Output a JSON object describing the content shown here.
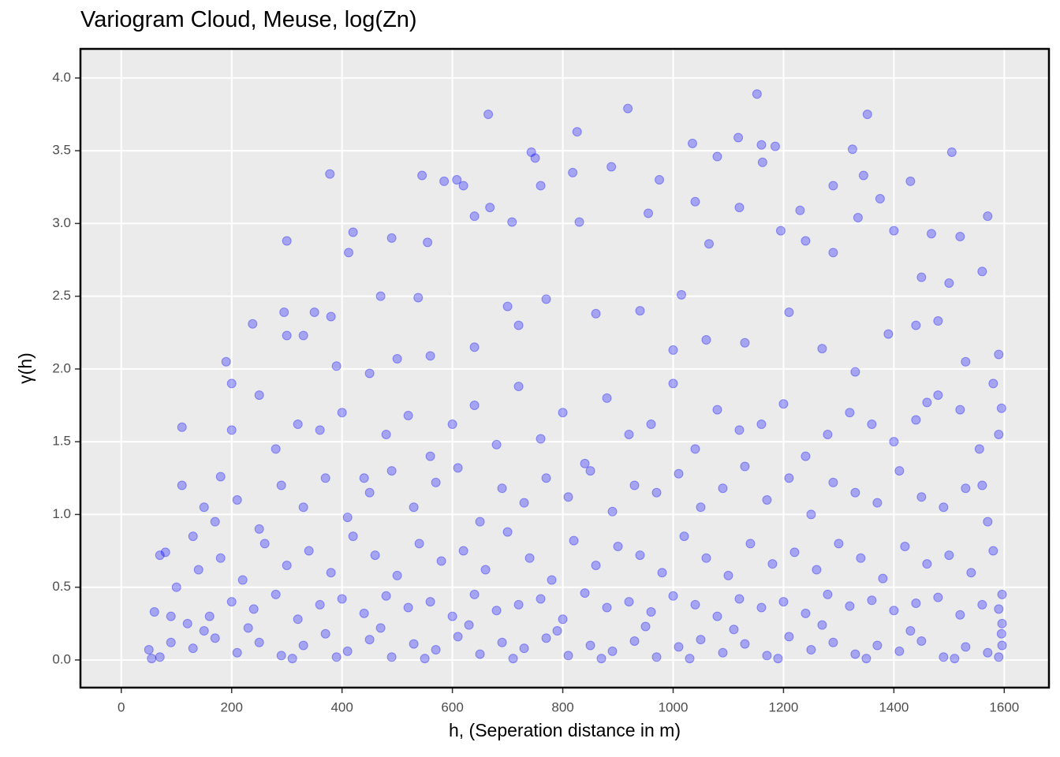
{
  "chart_data": {
    "type": "scatter",
    "title": "Variogram Cloud, Meuse, log(Zn)",
    "x_label": "h, (Seperation distance in m)",
    "y_label": "γ(h)",
    "xlim": [
      -74,
      1681
    ],
    "ylim": [
      -0.19,
      4.2
    ],
    "xticks": [
      0,
      200,
      400,
      600,
      800,
      1000,
      1200,
      1400,
      1600
    ],
    "yticks": [
      {
        "value": 0,
        "label": "0.0"
      },
      0.5,
      {
        "value": 1,
        "label": "1.0"
      },
      1.5,
      {
        "value": 2,
        "label": "2.0"
      },
      2.5,
      {
        "value": 3,
        "label": "3.0"
      },
      3.5,
      {
        "value": 4,
        "label": "4.0"
      }
    ],
    "grid": true,
    "series": [
      {
        "color": "#0000ff",
        "x": [
          665,
          918,
          1152,
          1352,
          826,
          1118,
          1035,
          1160,
          1185,
          1325,
          743,
          1505,
          750,
          1080,
          1162,
          378,
          545,
          818,
          888,
          1345,
          608,
          585,
          975,
          1290,
          760,
          620,
          1430,
          1040,
          1120,
          668,
          1375,
          1570,
          1335,
          1230,
          640,
          955,
          830,
          708,
          1195,
          420,
          1400,
          490,
          300,
          1468,
          1520,
          1065,
          555,
          1240,
          412,
          1290,
          1500,
          1560,
          1450,
          470,
          538,
          770,
          1015,
          380,
          350,
          295,
          238,
          190,
          200,
          200,
          110,
          110,
          150,
          180,
          70,
          80,
          60,
          50,
          90,
          1590,
          1595,
          1580,
          1555,
          1590,
          300,
          330,
          390,
          450,
          500,
          560,
          640,
          700,
          720,
          860,
          940,
          1000,
          1060,
          1130,
          1210,
          1270,
          1330,
          1390,
          1440,
          1480,
          1530,
          1460,
          250,
          280,
          320,
          360,
          400,
          440,
          480,
          520,
          560,
          600,
          640,
          680,
          720,
          760,
          800,
          840,
          880,
          920,
          960,
          1000,
          1040,
          1080,
          1120,
          1160,
          1200,
          1240,
          1280,
          1320,
          1360,
          1400,
          1440,
          1480,
          1520,
          1560,
          130,
          170,
          210,
          250,
          290,
          330,
          370,
          410,
          450,
          490,
          530,
          570,
          610,
          650,
          690,
          730,
          770,
          810,
          850,
          890,
          930,
          970,
          1010,
          1050,
          1090,
          1130,
          1170,
          1210,
          1250,
          1290,
          1330,
          1370,
          1410,
          1450,
          1490,
          1530,
          1570,
          100,
          140,
          180,
          220,
          260,
          300,
          340,
          380,
          420,
          460,
          500,
          540,
          580,
          620,
          660,
          700,
          740,
          780,
          820,
          860,
          900,
          940,
          980,
          1020,
          1060,
          1100,
          1140,
          1180,
          1220,
          1260,
          1300,
          1340,
          1380,
          1420,
          1460,
          1500,
          1540,
          1580,
          120,
          160,
          200,
          240,
          280,
          320,
          360,
          400,
          440,
          480,
          520,
          560,
          600,
          640,
          680,
          720,
          760,
          800,
          840,
          880,
          920,
          960,
          1000,
          1040,
          1080,
          1120,
          1160,
          1200,
          1240,
          1280,
          1320,
          1360,
          1400,
          1440,
          1480,
          1520,
          1560,
          1590,
          90,
          130,
          170,
          210,
          250,
          290,
          330,
          370,
          410,
          450,
          490,
          530,
          570,
          610,
          650,
          690,
          730,
          770,
          810,
          850,
          890,
          930,
          970,
          1010,
          1050,
          1090,
          1130,
          1170,
          1210,
          1250,
          1290,
          1330,
          1370,
          1410,
          1450,
          1490,
          1530,
          1570,
          1595,
          70,
          150,
          230,
          310,
          390,
          470,
          550,
          630,
          710,
          790,
          870,
          950,
          1030,
          1110,
          1190,
          1270,
          1350,
          1430,
          1510,
          1590,
          55,
          1596,
          1596,
          1596
        ],
        "values": [
          3.75,
          3.79,
          3.89,
          3.75,
          3.63,
          3.59,
          3.55,
          3.54,
          3.53,
          3.51,
          3.49,
          3.49,
          3.45,
          3.46,
          3.42,
          3.34,
          3.33,
          3.35,
          3.39,
          3.33,
          3.3,
          3.29,
          3.3,
          3.26,
          3.26,
          3.26,
          3.29,
          3.15,
          3.11,
          3.11,
          3.17,
          3.05,
          3.04,
          3.09,
          3.05,
          3.07,
          3.01,
          3.01,
          2.95,
          2.94,
          2.95,
          2.9,
          2.88,
          2.93,
          2.91,
          2.86,
          2.87,
          2.88,
          2.8,
          2.8,
          2.59,
          2.67,
          2.63,
          2.5,
          2.49,
          2.48,
          2.51,
          2.36,
          2.39,
          2.39,
          2.31,
          2.05,
          1.9,
          1.58,
          1.6,
          1.2,
          1.05,
          1.26,
          0.72,
          0.74,
          0.33,
          0.07,
          0.3,
          2.1,
          1.73,
          1.9,
          1.45,
          1.55,
          2.23,
          2.23,
          2.02,
          1.97,
          2.07,
          2.09,
          2.15,
          2.43,
          2.3,
          2.38,
          2.4,
          2.13,
          2.2,
          2.18,
          2.39,
          2.14,
          1.98,
          2.24,
          2.3,
          2.33,
          2.05,
          1.77,
          1.82,
          1.45,
          1.62,
          1.58,
          1.7,
          1.25,
          1.55,
          1.68,
          1.4,
          1.62,
          1.75,
          1.48,
          1.88,
          1.52,
          1.7,
          1.35,
          1.8,
          1.55,
          1.62,
          1.9,
          1.45,
          1.72,
          1.58,
          1.62,
          1.76,
          1.4,
          1.55,
          1.7,
          1.62,
          1.5,
          1.65,
          1.82,
          1.72,
          1.2,
          0.85,
          0.95,
          1.1,
          0.9,
          1.2,
          1.05,
          1.25,
          0.98,
          1.15,
          1.3,
          1.05,
          1.22,
          1.32,
          0.95,
          1.18,
          1.08,
          1.25,
          1.12,
          1.3,
          1.02,
          1.2,
          1.15,
          1.28,
          1.05,
          1.18,
          1.33,
          1.1,
          1.25,
          1.0,
          1.22,
          1.15,
          1.08,
          1.3,
          1.12,
          1.05,
          1.18,
          0.95,
          0.5,
          0.62,
          0.7,
          0.55,
          0.8,
          0.65,
          0.75,
          0.6,
          0.85,
          0.72,
          0.58,
          0.8,
          0.68,
          0.75,
          0.62,
          0.88,
          0.7,
          0.55,
          0.82,
          0.65,
          0.78,
          0.72,
          0.6,
          0.85,
          0.7,
          0.58,
          0.8,
          0.66,
          0.74,
          0.62,
          0.8,
          0.7,
          0.56,
          0.78,
          0.66,
          0.72,
          0.6,
          0.75,
          0.25,
          0.3,
          0.4,
          0.35,
          0.45,
          0.28,
          0.38,
          0.42,
          0.32,
          0.44,
          0.36,
          0.4,
          0.3,
          0.45,
          0.34,
          0.38,
          0.42,
          0.28,
          0.46,
          0.36,
          0.4,
          0.33,
          0.44,
          0.38,
          0.3,
          0.42,
          0.36,
          0.4,
          0.32,
          0.45,
          0.37,
          0.41,
          0.34,
          0.39,
          0.43,
          0.31,
          0.38,
          0.35,
          0.12,
          0.08,
          0.15,
          0.05,
          0.12,
          0.03,
          0.1,
          0.18,
          0.06,
          0.14,
          0.02,
          0.11,
          0.07,
          0.16,
          0.04,
          0.12,
          0.08,
          0.15,
          0.03,
          0.1,
          0.06,
          0.13,
          0.02,
          0.09,
          0.14,
          0.05,
          0.11,
          0.03,
          0.16,
          0.07,
          0.12,
          0.04,
          0.1,
          0.06,
          0.13,
          0.02,
          0.09,
          0.05,
          0.18,
          0.02,
          0.2,
          0.22,
          0.01,
          0.02,
          0.22,
          0.01,
          0.24,
          0.01,
          0.2,
          0.01,
          0.23,
          0.01,
          0.21,
          0.01,
          0.24,
          0.01,
          0.2,
          0.01,
          0.02,
          0.01,
          0.1,
          0.25,
          0.45
        ]
      }
    ]
  }
}
